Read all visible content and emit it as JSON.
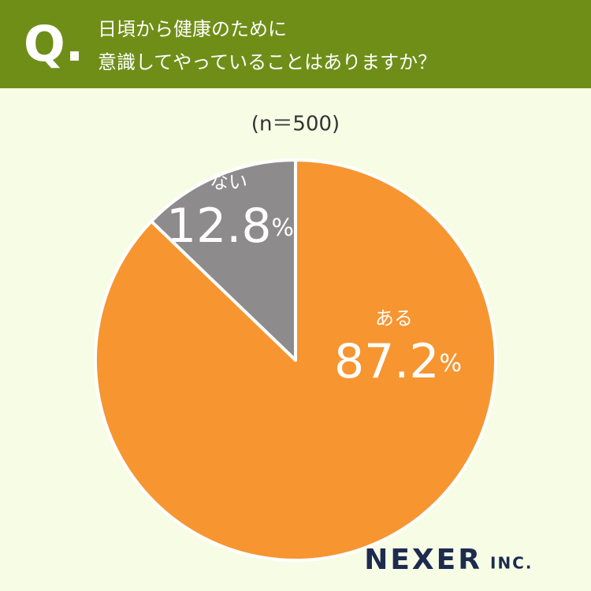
{
  "chart_data": {
    "type": "pie",
    "q_mark": "Q.",
    "title_lines": [
      "日頃から健康のために",
      "意識してやっていることはありますか？"
    ],
    "subtitle": "(n＝500)",
    "categories": [
      "ある",
      "ない"
    ],
    "values": [
      87.2,
      12.8
    ],
    "value_labels": [
      "87.2%",
      "12.8%"
    ],
    "colors": [
      "#f79530",
      "#8d8b8c"
    ],
    "brand": {
      "name": "NEXER",
      "suffix": "INC."
    }
  }
}
